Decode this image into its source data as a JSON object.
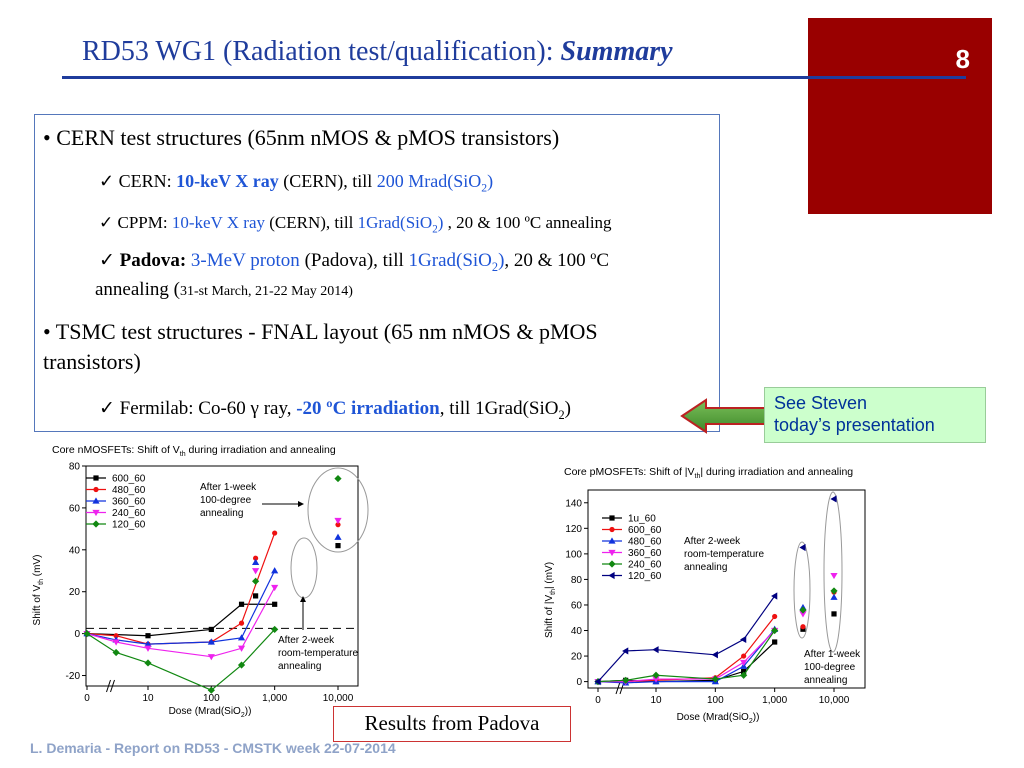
{
  "slide": {
    "title_main": "RD53 WG1 (Radiation test/qualification): ",
    "title_em": "Summary",
    "page_number": "8",
    "footer": "L. Demaria - Report on RD53 - CMSTK week 22-07-2014",
    "see_steven_1": "See Steven",
    "see_steven_2": "today’s presentation",
    "results": "Results from Padova"
  },
  "bullets": {
    "b1": "• CERN test structures (65nm nMOS & pMOS transistors)",
    "l1_check": "✓",
    "l1_a": "CERN: ",
    "l1_b": "10-keV X ray",
    "l1_c": " (CERN), till ",
    "l1_d": "200 Mrad(SiO",
    "l1_e": "2",
    "l1_f": ")",
    "l2_check": "✓",
    "l2_a": "CPPM: ",
    "l2_b": "10-keV X ray",
    "l2_c": " (CERN), till ",
    "l2_d": "1Grad(SiO",
    "l2_e": "2",
    "l2_f": ")",
    "l2_g": " , 20 & 100 ºC annealing",
    "l3_check": "✓",
    "l3_a": "Padova:",
    "l3_b": " 3-MeV proton",
    "l3_c": " (Padova), till ",
    "l3_d": "1Grad(SiO",
    "l3_e": "2",
    "l3_f": ")",
    "l3_g": ", 20 & 100 ºC",
    "l3_h": "annealing   (",
    "l3_i": "31-st March, 21-22 May 2014)",
    "b2_a": "• TSMC test structures - FNAL layout (65 nm nMOS & pMOS",
    "b2_b": "transistors)",
    "l4_check": "✓",
    "l4_a": "Fermilab: Co-60 γ ray, ",
    "l4_b": "-20 ºC irradiation",
    "l4_c": ", till 1Grad(SiO",
    "l4_d": "2",
    "l4_e": ")"
  },
  "chart_data": [
    {
      "type": "line",
      "title_a": "Core nMOSFETs: Shift of V",
      "title_sub": "th",
      "title_b": " during irradiation and annealing",
      "xlabel_a": "Dose (Mrad(SiO",
      "xlabel_sub": "2",
      "xlabel_b": "))",
      "ylabel_a": "Shift of V",
      "ylabel_sub": "th",
      "ylabel_b": " (mV)",
      "ylim": [
        -25,
        80
      ],
      "yticks": [
        -20,
        0,
        20,
        40,
        60,
        80
      ],
      "xticks": [
        0,
        10,
        100,
        1000,
        10000
      ],
      "xtick_labels": [
        "0",
        "10",
        "100",
        "1,000",
        "10,000"
      ],
      "dashed_level": 2.5,
      "series": [
        {
          "name": "600_60",
          "color": "#000000",
          "marker": "square",
          "x": [
            0,
            10,
            100,
            300,
            1000
          ],
          "y": [
            0,
            -1,
            2,
            14,
            14
          ],
          "anneal": [
            {
              "x": 500,
              "y": 18
            },
            {
              "x": 10000,
              "y": 42
            }
          ]
        },
        {
          "name": "480_60",
          "color": "#ee1111",
          "marker": "circle",
          "x": [
            0,
            3,
            10,
            100,
            300,
            1000
          ],
          "y": [
            0,
            -1,
            -5,
            -4,
            5,
            48
          ],
          "anneal": [
            {
              "x": 500,
              "y": 36
            },
            {
              "x": 10000,
              "y": 52
            }
          ]
        },
        {
          "name": "360_60",
          "color": "#1133dd",
          "marker": "triangle",
          "x": [
            0,
            3,
            10,
            100,
            300,
            1000
          ],
          "y": [
            0,
            -3,
            -5,
            -4,
            -2,
            30
          ],
          "anneal": [
            {
              "x": 500,
              "y": 34
            },
            {
              "x": 10000,
              "y": 46
            }
          ]
        },
        {
          "name": "240_60",
          "color": "#ee22ee",
          "marker": "triangle-down",
          "x": [
            0,
            3,
            10,
            100,
            300,
            1000
          ],
          "y": [
            0,
            -4,
            -7,
            -11,
            -7,
            22
          ],
          "anneal": [
            {
              "x": 500,
              "y": 30
            },
            {
              "x": 10000,
              "y": 54
            }
          ]
        },
        {
          "name": "120_60",
          "color": "#118811",
          "marker": "diamond",
          "x": [
            0,
            3,
            10,
            100,
            300,
            1000
          ],
          "y": [
            0,
            -9,
            -14,
            -27,
            -15,
            2
          ],
          "anneal": [
            {
              "x": 500,
              "y": 25
            },
            {
              "x": 10000,
              "y": 74
            }
          ]
        }
      ],
      "annotations": {
        "top_1": "After 1-week",
        "top_2": "100-degree",
        "top_3": "annealing",
        "bot_1": "After 2-week",
        "bot_2": "room-temperature",
        "bot_3": "annealing"
      }
    },
    {
      "type": "line",
      "title_a": "Core pMOSFETs: Shift of |V",
      "title_sub": "th",
      "title_b": "| during irradiation and annealing",
      "xlabel_a": "Dose (Mrad(SiO",
      "xlabel_sub": "2",
      "xlabel_b": "))",
      "ylabel_a": "Shift of |V",
      "ylabel_sub": "th",
      "ylabel_b": "| (mV)",
      "ylim": [
        -5,
        150
      ],
      "yticks": [
        0,
        20,
        40,
        60,
        80,
        100,
        120,
        140
      ],
      "xticks": [
        0,
        10,
        100,
        1000,
        10000
      ],
      "xtick_labels": [
        "0",
        "10",
        "100",
        "1,000",
        "10,000"
      ],
      "series": [
        {
          "name": "1u_60",
          "color": "#000000",
          "marker": "square",
          "x": [
            0,
            3,
            10,
            100,
            300,
            1000
          ],
          "y": [
            0,
            1,
            0,
            1,
            8,
            31
          ],
          "anneal": [
            {
              "x": 3000,
              "y": 41
            },
            {
              "x": 10000,
              "y": 53
            }
          ]
        },
        {
          "name": "600_60",
          "color": "#ee1111",
          "marker": "circle",
          "x": [
            0,
            3,
            10,
            100,
            300,
            1000
          ],
          "y": [
            0,
            0,
            1,
            3,
            20,
            51
          ],
          "anneal": [
            {
              "x": 3000,
              "y": 43
            },
            {
              "x": 10000,
              "y": 70
            }
          ]
        },
        {
          "name": "480_60",
          "color": "#1133dd",
          "marker": "triangle",
          "x": [
            0,
            3,
            10,
            100,
            300,
            1000
          ],
          "y": [
            0,
            -1,
            0,
            0,
            12,
            41
          ],
          "anneal": [
            {
              "x": 3000,
              "y": 58
            },
            {
              "x": 10000,
              "y": 66
            }
          ]
        },
        {
          "name": "360_60",
          "color": "#ee22ee",
          "marker": "triangle-down",
          "x": [
            0,
            3,
            10,
            100,
            300,
            1000
          ],
          "y": [
            0,
            0,
            2,
            2,
            15,
            40
          ],
          "anneal": [
            {
              "x": 3000,
              "y": 53
            },
            {
              "x": 10000,
              "y": 83
            }
          ]
        },
        {
          "name": "240_60",
          "color": "#118811",
          "marker": "diamond",
          "x": [
            0,
            3,
            10,
            100,
            300,
            1000
          ],
          "y": [
            0,
            1,
            5,
            2,
            5,
            40
          ],
          "anneal": [
            {
              "x": 3000,
              "y": 56
            },
            {
              "x": 10000,
              "y": 71
            }
          ]
        },
        {
          "name": "120_60",
          "color": "#000080",
          "marker": "triangle-left",
          "x": [
            0,
            3,
            10,
            100,
            300,
            1000
          ],
          "y": [
            0,
            24,
            25,
            21,
            33,
            67
          ],
          "anneal": [
            {
              "x": 3000,
              "y": 105
            },
            {
              "x": 10000,
              "y": 143
            }
          ]
        }
      ],
      "annotations": {
        "top_1": "After 2-week",
        "top_2": "room-temperature",
        "top_3": "annealing",
        "bot_1": "After 1-week",
        "bot_2": "100-degree",
        "bot_3": "annealing"
      }
    }
  ]
}
